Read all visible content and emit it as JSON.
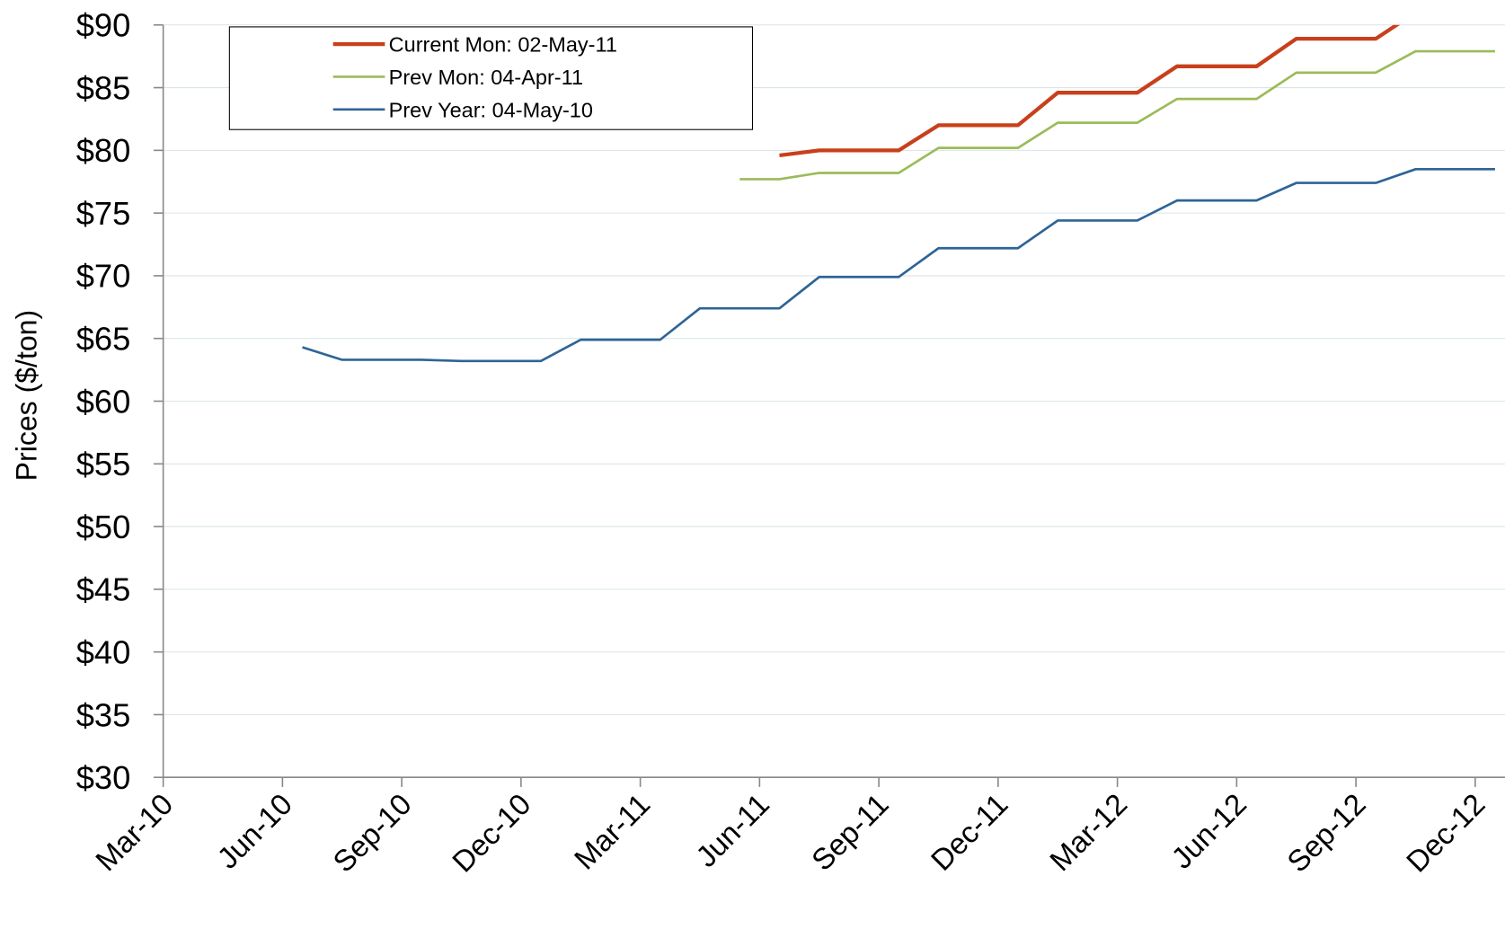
{
  "chart_data": {
    "type": "line",
    "y_label": "Prices  ($/ton)",
    "categories": [
      "Mar-10",
      null,
      null,
      "Jun-10",
      null,
      null,
      "Sep-10",
      null,
      null,
      "Dec-10",
      null,
      null,
      "Mar-11",
      null,
      null,
      "Jun-11",
      null,
      null,
      "Sep-11",
      null,
      null,
      "Dec-11",
      null,
      null,
      "Mar-12",
      null,
      null,
      "Jun-12",
      null,
      null,
      "Sep-12",
      null,
      null,
      "Dec-12"
    ],
    "series": [
      {
        "name": "Current Mon: 02-May-11",
        "color": "#c8401b",
        "width": 4,
        "values": [
          null,
          null,
          null,
          null,
          null,
          null,
          null,
          null,
          null,
          null,
          null,
          null,
          null,
          null,
          null,
          79.6,
          80.0,
          80.0,
          80.0,
          82.0,
          82.0,
          82.0,
          84.6,
          84.6,
          84.6,
          86.7,
          86.7,
          86.7,
          88.9,
          88.9,
          88.9,
          91.0,
          91.0,
          91.0
        ]
      },
      {
        "name": "Prev Mon: 04-Apr-11",
        "color": "#9bbb59",
        "width": 2.5,
        "values": [
          null,
          null,
          null,
          null,
          null,
          null,
          null,
          null,
          null,
          null,
          null,
          null,
          null,
          null,
          77.7,
          77.7,
          78.2,
          78.2,
          78.2,
          80.2,
          80.2,
          80.2,
          82.2,
          82.2,
          82.2,
          84.1,
          84.1,
          84.1,
          86.2,
          86.2,
          86.2,
          87.9,
          87.9,
          87.9
        ]
      },
      {
        "name": "Prev Year: 04-May-10",
        "color": "#2e6496",
        "width": 2.5,
        "values": [
          null,
          null,
          null,
          64.3,
          63.3,
          63.3,
          63.3,
          63.2,
          63.2,
          63.2,
          64.9,
          64.9,
          64.9,
          67.4,
          67.4,
          67.4,
          69.9,
          69.9,
          69.9,
          72.2,
          72.2,
          72.2,
          74.4,
          74.4,
          74.4,
          76.0,
          76.0,
          76.0,
          77.4,
          77.4,
          77.4,
          78.5,
          78.5,
          78.5
        ]
      }
    ],
    "ylim": [
      30,
      90
    ],
    "yticks": [
      {
        "value": 30,
        "label": "$30"
      },
      {
        "value": 35,
        "label": "$35"
      },
      {
        "value": 40,
        "label": "$40"
      },
      {
        "value": 45,
        "label": "$45"
      },
      {
        "value": 50,
        "label": "$50"
      },
      {
        "value": 55,
        "label": "$55"
      },
      {
        "value": 60,
        "label": "$60"
      },
      {
        "value": 65,
        "label": "$65"
      },
      {
        "value": 70,
        "label": "$70"
      },
      {
        "value": 75,
        "label": "$75"
      },
      {
        "value": 80,
        "label": "$80"
      },
      {
        "value": 85,
        "label": "$85"
      },
      {
        "value": 90,
        "label": "$90"
      }
    ],
    "grid": true,
    "legend": "top-left"
  }
}
